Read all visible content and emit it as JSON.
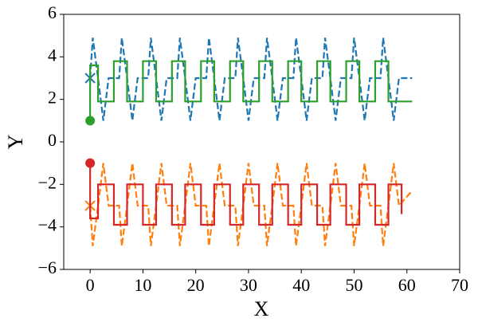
{
  "chart_data": {
    "type": "line",
    "xlabel": "X",
    "ylabel": "Y",
    "xlim": [
      -5,
      70
    ],
    "xticks": [
      0,
      10,
      20,
      30,
      40,
      50,
      60,
      70
    ],
    "ylim": [
      -6,
      6
    ],
    "yticks": [
      {
        "value": -6,
        "label": "−6"
      },
      {
        "value": -4,
        "label": "−4"
      },
      {
        "value": -2,
        "label": "−2"
      },
      0,
      2,
      4,
      6
    ],
    "series": [
      {
        "color": "#1f77b4",
        "style": "dashed",
        "start_marker": "x",
        "x": [
          0,
          0.5,
          1.5,
          2.5,
          3.5,
          5.5,
          6,
          7,
          8,
          9,
          11,
          11.5,
          12.5,
          13.5,
          14.5,
          16.5,
          17,
          18,
          19,
          20,
          22,
          22.5,
          23.5,
          24.5,
          25.5,
          27.5,
          28,
          29,
          30,
          31,
          33,
          33.5,
          34.5,
          35.5,
          36.5,
          38.5,
          39,
          40,
          41,
          42,
          44,
          44.5,
          45.5,
          46.5,
          47.5,
          49.5,
          50,
          51,
          52,
          53,
          55,
          55.5,
          56.5,
          57.5,
          58.5,
          61
        ],
        "values": [
          3,
          4.9,
          3,
          1,
          3,
          3,
          4.9,
          3,
          1,
          3,
          3,
          4.9,
          3,
          1,
          3,
          3,
          4.9,
          3,
          1,
          3,
          3,
          4.9,
          3,
          1,
          3,
          3,
          4.9,
          3,
          1,
          3,
          3,
          4.9,
          3,
          1,
          3,
          3,
          4.9,
          3,
          1,
          3,
          3,
          4.9,
          3,
          1,
          3,
          3,
          4.9,
          3,
          1,
          3,
          3,
          4.9,
          3,
          1,
          3,
          3
        ]
      },
      {
        "color": "#ff7f0e",
        "style": "dashed",
        "start_marker": "x",
        "x": [
          0,
          0.5,
          1.5,
          2.5,
          3.5,
          5.5,
          6,
          7,
          8,
          9,
          11,
          11.5,
          12.5,
          13.5,
          14.5,
          16.5,
          17,
          18,
          19,
          20,
          22,
          22.5,
          23.5,
          24.5,
          25.5,
          27.5,
          28,
          29,
          30,
          31,
          33,
          33.5,
          34.5,
          35.5,
          36.5,
          38.5,
          39,
          40,
          41,
          42,
          44,
          44.5,
          45.5,
          46.5,
          47.5,
          49.5,
          50,
          51,
          52,
          53,
          55,
          55.5,
          56.5,
          57.5,
          58.5,
          61
        ],
        "values": [
          -3,
          -4.9,
          -3,
          -1,
          -3,
          -3,
          -4.9,
          -3,
          -1,
          -3,
          -3,
          -4.9,
          -3,
          -1,
          -3,
          -3,
          -4.9,
          -3,
          -1,
          -3,
          -3,
          -4.9,
          -3,
          -1,
          -3,
          -3,
          -4.9,
          -3,
          -1,
          -3,
          -3,
          -4.9,
          -3,
          -1,
          -3,
          -3,
          -4.9,
          -3,
          -1,
          -3,
          -3,
          -4.9,
          -3,
          -1,
          -3,
          -3,
          -4.9,
          -3,
          -1,
          -3,
          -3,
          -4.9,
          -3,
          -1,
          -3,
          -2.3
        ]
      },
      {
        "color": "#2ca02c",
        "style": "solid",
        "start_marker": "o",
        "x": [
          0,
          0,
          1.5,
          1.5,
          4.5,
          4.5,
          7,
          7,
          10,
          10,
          12.5,
          12.5,
          15.5,
          15.5,
          18,
          18,
          21,
          21,
          23.5,
          23.5,
          26.5,
          26.5,
          29,
          29,
          32,
          32,
          34.5,
          34.5,
          37.5,
          37.5,
          40,
          40,
          43,
          43,
          45.5,
          45.5,
          48.5,
          48.5,
          51,
          51,
          54,
          54,
          56.5,
          56.5,
          61
        ],
        "values": [
          1,
          3.6,
          3.6,
          1.9,
          1.9,
          3.8,
          3.8,
          1.9,
          1.9,
          3.8,
          3.8,
          1.9,
          1.9,
          3.8,
          3.8,
          1.9,
          1.9,
          3.8,
          3.8,
          1.9,
          1.9,
          3.8,
          3.8,
          1.9,
          1.9,
          3.8,
          3.8,
          1.9,
          1.9,
          3.8,
          3.8,
          1.9,
          1.9,
          3.8,
          3.8,
          1.9,
          1.9,
          3.8,
          3.8,
          1.9,
          1.9,
          3.8,
          3.8,
          1.9,
          1.9
        ]
      },
      {
        "color": "#d62728",
        "style": "solid",
        "start_marker": "o",
        "x": [
          0,
          0,
          1.5,
          1.5,
          4.5,
          4.5,
          7,
          7,
          10,
          10,
          12.5,
          12.5,
          15.5,
          15.5,
          18,
          18,
          21,
          21,
          23.5,
          23.5,
          26.5,
          26.5,
          29,
          29,
          32,
          32,
          34.5,
          34.5,
          37.5,
          37.5,
          40,
          40,
          43,
          43,
          45.5,
          45.5,
          48.5,
          48.5,
          51,
          51,
          54,
          54,
          56.5,
          56.5,
          59,
          59
        ],
        "values": [
          -1,
          -3.6,
          -3.6,
          -2,
          -2,
          -3.9,
          -3.9,
          -2,
          -2,
          -3.9,
          -3.9,
          -2,
          -2,
          -3.9,
          -3.9,
          -2,
          -2,
          -3.9,
          -3.9,
          -2,
          -2,
          -3.9,
          -3.9,
          -2,
          -2,
          -3.9,
          -3.9,
          -2,
          -2,
          -3.9,
          -3.9,
          -2,
          -2,
          -3.9,
          -3.9,
          -2,
          -2,
          -3.9,
          -3.9,
          -2,
          -2,
          -3.9,
          -3.9,
          -2,
          -2,
          -3.4
        ]
      }
    ]
  }
}
